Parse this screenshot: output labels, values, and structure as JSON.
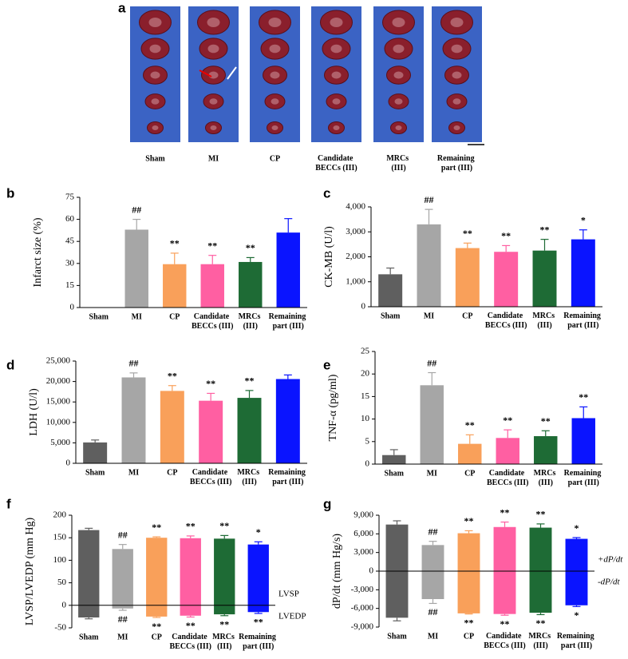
{
  "figure_a": {
    "panel": "a",
    "labels": [
      "Sham",
      "MI",
      "CP",
      "Candidate BECCs (III)",
      "MRCs (III)",
      "Remaining part (III)"
    ]
  },
  "chart_data": [
    {
      "type": "bar",
      "panel": "b",
      "y_label": "Infarct size (%)",
      "categories": [
        "Sham",
        "MI",
        "CP",
        "Candidate BECCs (III)",
        "MRCs (III)",
        "Remaining part (III)"
      ],
      "colors": [
        "#5f5f5f",
        "#a6a6a6",
        "#f9a05a",
        "#ff5fa2",
        "#1e6b35",
        "#0a14ff"
      ],
      "values": [
        0,
        53,
        29.5,
        29.5,
        31,
        51
      ],
      "errors": [
        null,
        7,
        7.5,
        6,
        3,
        9.5
      ],
      "annotations": [
        null,
        "##",
        "**",
        "**",
        "**",
        null
      ],
      "ylim": [
        0,
        75
      ],
      "yticks": [
        0,
        15,
        30,
        45,
        60,
        75
      ]
    },
    {
      "type": "bar",
      "panel": "c",
      "y_label": "CK-MB (U/l)",
      "categories": [
        "Sham",
        "MI",
        "CP",
        "Candidate BECCs (III)",
        "MRCs (III)",
        "Remaining part (III)"
      ],
      "colors": [
        "#5f5f5f",
        "#a6a6a6",
        "#f9a05a",
        "#ff5fa2",
        "#1e6b35",
        "#0a14ff"
      ],
      "values": [
        1300,
        3300,
        2350,
        2200,
        2250,
        2700
      ],
      "errors": [
        250,
        600,
        200,
        250,
        450,
        380
      ],
      "annotations": [
        null,
        "##",
        "**",
        "**",
        "**",
        "*"
      ],
      "ylim": [
        0,
        4000
      ],
      "yticks": [
        0,
        {
          "value": 1000,
          "label": "1,000"
        },
        {
          "value": 2000,
          "label": "2,000"
        },
        {
          "value": 3000,
          "label": "3,000"
        },
        {
          "value": 4000,
          "label": "4,000"
        }
      ]
    },
    {
      "type": "bar",
      "panel": "d",
      "y_label": "LDH (U/l)",
      "categories": [
        "Sham",
        "MI",
        "CP",
        "Candidate BECCs (III)",
        "MRCs (III)",
        "Remaining part (III)"
      ],
      "colors": [
        "#5f5f5f",
        "#a6a6a6",
        "#f9a05a",
        "#ff5fa2",
        "#1e6b35",
        "#0a14ff"
      ],
      "values": [
        5100,
        21000,
        17700,
        15300,
        16000,
        20600
      ],
      "errors": [
        600,
        1100,
        1300,
        1800,
        1800,
        1000
      ],
      "annotations": [
        null,
        "##",
        "**",
        "**",
        "**",
        null
      ],
      "ylim": [
        0,
        25000
      ],
      "yticks": [
        0,
        {
          "value": 5000,
          "label": "5,000"
        },
        {
          "value": 10000,
          "label": "10,000"
        },
        {
          "value": 15000,
          "label": "15,000"
        },
        {
          "value": 20000,
          "label": "20,000"
        },
        {
          "value": 25000,
          "label": "25,000"
        }
      ]
    },
    {
      "type": "bar",
      "panel": "e",
      "y_label": "TNF-α (pg/ml)",
      "categories": [
        "Sham",
        "MI",
        "CP",
        "Candidate BECCs (III)",
        "MRCs (III)",
        "Remaining part (III)"
      ],
      "colors": [
        "#5f5f5f",
        "#a6a6a6",
        "#f9a05a",
        "#ff5fa2",
        "#1e6b35",
        "#0a14ff"
      ],
      "values": [
        2,
        17.5,
        4.5,
        5.8,
        6.2,
        10.2
      ],
      "errors": [
        1.2,
        2.8,
        2,
        1.8,
        1.2,
        2.5
      ],
      "annotations": [
        null,
        "##",
        "**",
        "**",
        "**",
        "**"
      ],
      "ylim": [
        0,
        25
      ],
      "yticks": [
        0,
        5,
        10,
        15,
        20,
        25
      ]
    },
    {
      "type": "bar",
      "panel": "f",
      "y_label": "LVSP/LVEDP (mm Hg)",
      "categories": [
        "Sham",
        "MI",
        "CP",
        "Candidate BECCs (III)",
        "MRCs (III)",
        "Remaining part (III)"
      ],
      "colors": [
        "#5f5f5f",
        "#a6a6a6",
        "#f9a05a",
        "#ff5fa2",
        "#1e6b35",
        "#0a14ff"
      ],
      "series": [
        {
          "name": "LVSP",
          "values": [
            167,
            125,
            150,
            149,
            148,
            135
          ],
          "errors": [
            4,
            10,
            2,
            5,
            7,
            6
          ],
          "annotations": [
            null,
            "##",
            "**",
            "**",
            "**",
            "*"
          ]
        },
        {
          "name": "LVEDP",
          "values": [
            -27,
            -7,
            -25,
            -23,
            -20,
            -15
          ],
          "errors": [
            3,
            4,
            2,
            3,
            3,
            3
          ],
          "annotations": [
            null,
            "##",
            "**",
            "**",
            "**",
            "**"
          ]
        }
      ],
      "ylim": [
        -50,
        200
      ],
      "yticks": [
        -50,
        0,
        50,
        100,
        150,
        200
      ]
    },
    {
      "type": "bar",
      "panel": "g",
      "y_label": "dP/dt (mm Hg/s)",
      "categories": [
        "Sham",
        "MI",
        "CP",
        "Candidate BECCs (III)",
        "MRCs (III)",
        "Remaining part (III)"
      ],
      "colors": [
        "#5f5f5f",
        "#a6a6a6",
        "#f9a05a",
        "#ff5fa2",
        "#1e6b35",
        "#0a14ff"
      ],
      "series": [
        {
          "name": "+dP/dt",
          "values": [
            7500,
            4200,
            6100,
            7100,
            7000,
            5200
          ],
          "errors": [
            600,
            600,
            400,
            800,
            600,
            200
          ],
          "annotations": [
            null,
            "##",
            "**",
            "**",
            "**",
            "*"
          ]
        },
        {
          "name": "-dP/dt",
          "values": [
            -7500,
            -4500,
            -6800,
            -6900,
            -6700,
            -5500
          ],
          "errors": [
            500,
            700,
            100,
            200,
            300,
            200
          ],
          "annotations": [
            null,
            "##",
            "**",
            "**",
            "**",
            "*"
          ]
        }
      ],
      "ylim": [
        -9000,
        9000
      ],
      "yticks": [
        {
          "value": -9000,
          "label": "-9,000"
        },
        {
          "value": -6000,
          "label": "-6,000"
        },
        {
          "value": -3000,
          "label": "-3,000"
        },
        0,
        {
          "value": 3000,
          "label": "3,000"
        },
        {
          "value": 6000,
          "label": "6,000"
        },
        {
          "value": 9000,
          "label": "9,000"
        }
      ]
    }
  ]
}
